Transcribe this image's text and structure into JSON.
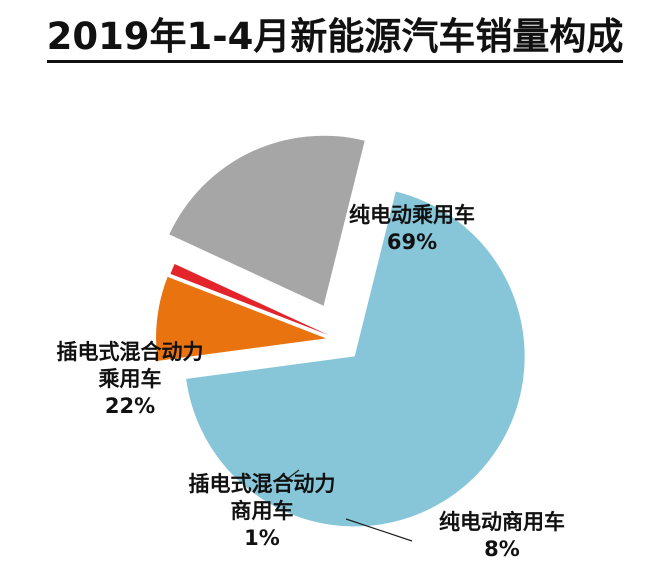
{
  "chart_data": {
    "type": "pie",
    "title": "2019年1-4月新能源汽车销量构成",
    "style": "exploded",
    "slices": [
      {
        "name_lines": [
          "纯电动乘用车"
        ],
        "value": 69,
        "value_label": "69%",
        "color": "#87C5D9"
      },
      {
        "name_lines": [
          "纯电动商用车"
        ],
        "value": 8,
        "value_label": "8%",
        "color": "#E8730F"
      },
      {
        "name_lines": [
          "插电式混合动力",
          "商用车"
        ],
        "value": 1,
        "value_label": "1%",
        "color": "#E3242B"
      },
      {
        "name_lines": [
          "插电式混合动力",
          "乘用车"
        ],
        "value": 22,
        "value_label": "22%",
        "color": "#A6A6A6"
      }
    ]
  }
}
